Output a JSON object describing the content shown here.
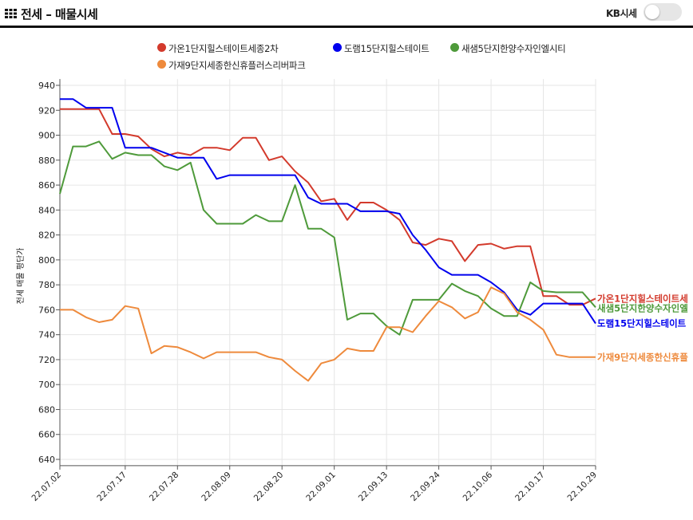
{
  "header": {
    "title": "전세 – 매물시세",
    "toggle_label": "KB시세",
    "toggle_on": false,
    "icons": [
      "grid-icon"
    ]
  },
  "colors": {
    "series1": "#d33a2c",
    "series2": "#0000ee",
    "series3": "#4e9a3a",
    "series4": "#ee8a3c",
    "grid": "#e6e6e6"
  },
  "chart_data": {
    "type": "line",
    "ylabel": "전세 매물 평단가",
    "xlabel": "",
    "ylim": [
      635,
      945
    ],
    "yticks": [
      640,
      660,
      680,
      700,
      720,
      740,
      760,
      780,
      800,
      820,
      840,
      860,
      880,
      900,
      920,
      940
    ],
    "x_tick_labels": [
      "22.07.02",
      "22.07.17",
      "22.07.28",
      "22.08.09",
      "22.08.20",
      "22.09.01",
      "22.09.13",
      "22.09.24",
      "22.10.06",
      "22.10.17",
      "22.10.29"
    ],
    "x_tick_positions": [
      0,
      5,
      9,
      13,
      17,
      21,
      25,
      29,
      33,
      37,
      41
    ],
    "n_points": 42,
    "grid": true,
    "legend_position": "top",
    "series": [
      {
        "name": "가온1단지힐스테이트세종2차",
        "end_label": "가온1단지힐스테이트세",
        "color": "#d33a2c",
        "values": [
          921,
          921,
          921,
          921,
          901,
          901,
          899,
          889,
          883,
          886,
          884,
          890,
          890,
          888,
          898,
          898,
          880,
          883,
          871,
          862,
          847,
          849,
          832,
          846,
          846,
          840,
          832,
          814,
          812,
          817,
          815,
          799,
          812,
          813,
          809,
          811,
          811,
          771,
          771,
          764,
          764,
          769
        ]
      },
      {
        "name": "도램15단지힐스테이트",
        "end_label": "도램15단지힐스테이트",
        "color": "#0000ee",
        "values": [
          929,
          929,
          922,
          922,
          922,
          890,
          890,
          890,
          886,
          882,
          882,
          882,
          865,
          868,
          868,
          868,
          868,
          868,
          868,
          850,
          845,
          845,
          845,
          839,
          839,
          839,
          837,
          820,
          808,
          794,
          788,
          788,
          788,
          782,
          774,
          760,
          756,
          765,
          765,
          765,
          765,
          749
        ]
      },
      {
        "name": "새샘5단지한양수자인엘시티",
        "end_label": "새샘5단지한양수자인엘",
        "color": "#4e9a3a",
        "values": [
          853,
          891,
          891,
          895,
          881,
          886,
          884,
          884,
          875,
          872,
          878,
          840,
          829,
          829,
          829,
          836,
          831,
          831,
          860,
          825,
          825,
          818,
          752,
          757,
          757,
          747,
          740,
          768,
          768,
          768,
          781,
          775,
          771,
          761,
          755,
          755,
          782,
          775,
          774,
          774,
          774,
          762
        ]
      },
      {
        "name": "가재9단지세종한신휴플러스리버파크",
        "end_label": "가재9단지세종한신휴플",
        "color": "#ee8a3c",
        "values": [
          760,
          760,
          754,
          750,
          752,
          763,
          761,
          725,
          731,
          730,
          726,
          721,
          726,
          726,
          726,
          726,
          722,
          720,
          711,
          703,
          717,
          720,
          729,
          727,
          727,
          746,
          746,
          742,
          755,
          767,
          762,
          753,
          758,
          778,
          773,
          758,
          752,
          744,
          724,
          722,
          722,
          722
        ]
      }
    ]
  }
}
